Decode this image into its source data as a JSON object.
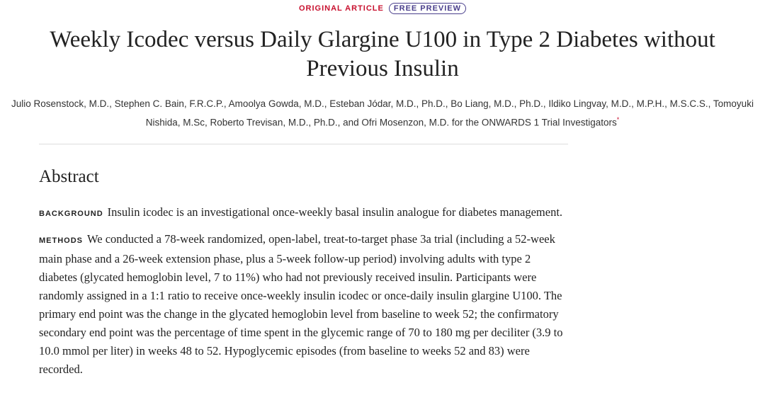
{
  "header": {
    "label": "ORIGINAL ARTICLE",
    "badge": "FREE PREVIEW"
  },
  "article": {
    "title": "Weekly Icodec versus Daily Glargine U100 in Type 2 Diabetes without Previous Insulin",
    "authors": "Julio Rosenstock, M.D., Stephen C. Bain, F.R.C.P., Amoolya Gowda, M.D., Esteban Jódar, M.D., Ph.D., Bo Liang, M.D., Ph.D., Ildiko Lingvay, M.D., M.P.H., M.S.C.S., Tomoyuki Nishida, M.Sc, Roberto Trevisan, M.D., Ph.D., and Ofri Mosenzon, M.D. for the ONWARDS 1 Trial Investigators",
    "authors_note": "*"
  },
  "abstract": {
    "heading": "Abstract",
    "sections": [
      {
        "label": "BACKGROUND",
        "text": "Insulin icodec is an investigational once-weekly basal insulin analogue for diabetes management."
      },
      {
        "label": "METHODS",
        "text": "We conducted a 78-week randomized, open-label, treat-to-target phase 3a trial (including a 52-week main phase and a 26-week extension phase, plus a 5-week follow-up period) involving adults with type 2 diabetes (glycated hemoglobin level, 7 to 11%) who had not previously received insulin. Participants were randomly assigned in a 1:1 ratio to receive once-weekly insulin icodec or once-daily insulin glargine U100. The primary end point was the change in the glycated hemoglobin level from baseline to week 52; the confirmatory secondary end point was the percentage of time spent in the glycemic range of 70 to 180 mg per deciliter (3.9 to 10.0 mmol per liter) in weeks 48 to 52. Hypoglycemic episodes (from baseline to weeks 52 and 83) were recorded."
      }
    ]
  }
}
